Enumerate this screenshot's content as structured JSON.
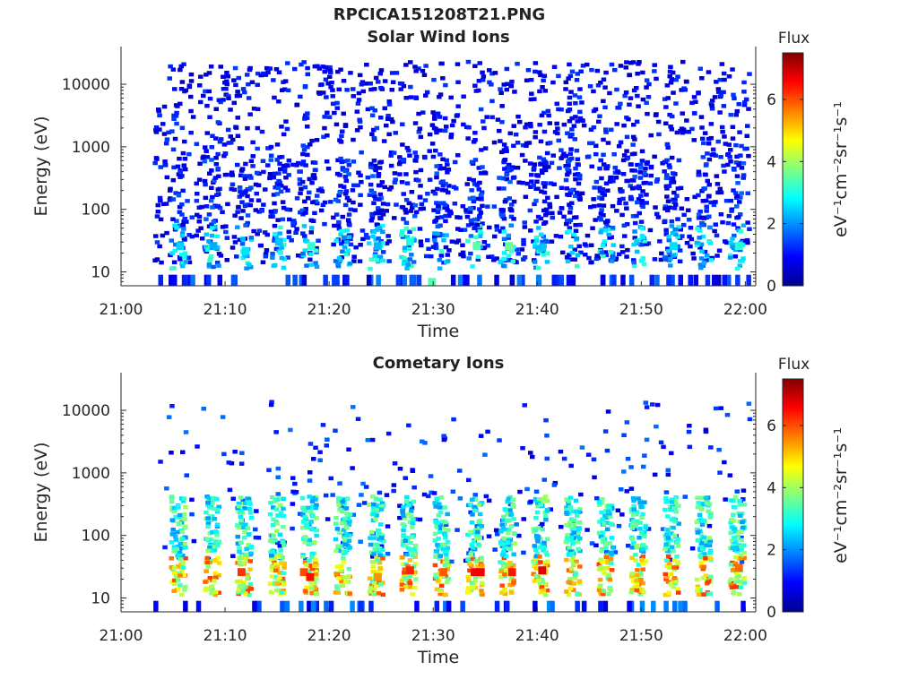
{
  "figure_title": "RPCICA151208T21.PNG",
  "colormap": [
    "#00008f",
    "#0000ff",
    "#0080ff",
    "#00ffff",
    "#80ff80",
    "#ffff00",
    "#ff8000",
    "#ff0000",
    "#800000"
  ],
  "colorbar": {
    "title": "Flux",
    "unit_label": "eV⁻¹cm⁻²sr⁻¹s⁻¹",
    "min": 0,
    "max": 7.5,
    "ticks": [
      "0",
      "2",
      "4",
      "6"
    ]
  },
  "x_ticks": [
    "21:00",
    "21:10",
    "21:20",
    "21:30",
    "21:40",
    "21:50",
    "22:00"
  ],
  "y_ticks": [
    "10",
    "100",
    "1000",
    "10000"
  ],
  "chart_data": [
    {
      "type": "heatmap",
      "title": "Solar Wind Ions",
      "xlabel": "Time",
      "ylabel": "Energy (eV)",
      "xlim": [
        "21:00",
        "22:00"
      ],
      "yscale": "log",
      "ylim": [
        6,
        40000
      ],
      "clim": [
        0,
        7.5
      ],
      "data_start_minute": 3,
      "periodic_bursts_minutes": [
        5.3,
        8.5,
        11.6,
        14.8,
        17.9,
        21.1,
        24.3,
        27.4,
        30.6,
        33.8,
        36.9,
        40.1,
        43.2,
        46.4,
        49.5,
        52.7,
        55.8,
        59.0
      ],
      "cells": [
        {
          "t": 5.3,
          "e": 30,
          "v": 2.5
        },
        {
          "t": 8.5,
          "e": 30,
          "v": 2.2
        },
        {
          "t": 11.6,
          "e": 25,
          "v": 2.6
        },
        {
          "t": 14.8,
          "e": 35,
          "v": 2.4
        },
        {
          "t": 17.9,
          "e": 30,
          "v": 3.2
        },
        {
          "t": 24.3,
          "e": 30,
          "v": 2.3
        },
        {
          "t": 27.4,
          "e": 35,
          "v": 3.0
        },
        {
          "t": 29.5,
          "e": 8,
          "v": 3.4
        },
        {
          "t": 33.8,
          "e": 30,
          "v": 3.5
        },
        {
          "t": 36.9,
          "e": 30,
          "v": 3.6
        },
        {
          "t": 40.1,
          "e": 28,
          "v": 2.4
        },
        {
          "t": 52.7,
          "e": 30,
          "v": 2.6
        },
        {
          "t": 59.0,
          "e": 30,
          "v": 3.1
        }
      ]
    },
    {
      "type": "heatmap",
      "title": "Cometary Ions",
      "xlabel": "Time",
      "ylabel": "Energy (eV)",
      "xlim": [
        "21:00",
        "22:00"
      ],
      "yscale": "log",
      "ylim": [
        6,
        40000
      ],
      "clim": [
        0,
        7.5
      ],
      "data_start_minute": 3,
      "periodic_bursts_minutes": [
        5.3,
        8.5,
        11.6,
        14.8,
        17.9,
        21.1,
        24.3,
        27.4,
        30.6,
        33.8,
        36.9,
        40.1,
        43.2,
        46.4,
        49.5,
        52.7,
        55.8,
        59.0
      ],
      "cells": [
        {
          "t": 11.2,
          "e": 30,
          "v": 6.2
        },
        {
          "t": 17.2,
          "e": 30,
          "v": 6.0
        },
        {
          "t": 17.8,
          "e": 25,
          "v": 6.5
        },
        {
          "t": 27.4,
          "e": 32,
          "v": 6.3
        },
        {
          "t": 33.6,
          "e": 30,
          "v": 6.6
        },
        {
          "t": 34.2,
          "e": 30,
          "v": 6.7
        },
        {
          "t": 37.2,
          "e": 30,
          "v": 6.4
        },
        {
          "t": 40.1,
          "e": 32,
          "v": 6.8
        },
        {
          "t": 30.6,
          "e": 30,
          "v": 5.9
        },
        {
          "t": 24.3,
          "e": 25,
          "v": 5.5
        },
        {
          "t": 59.0,
          "e": 35,
          "v": 5.8
        }
      ]
    }
  ]
}
